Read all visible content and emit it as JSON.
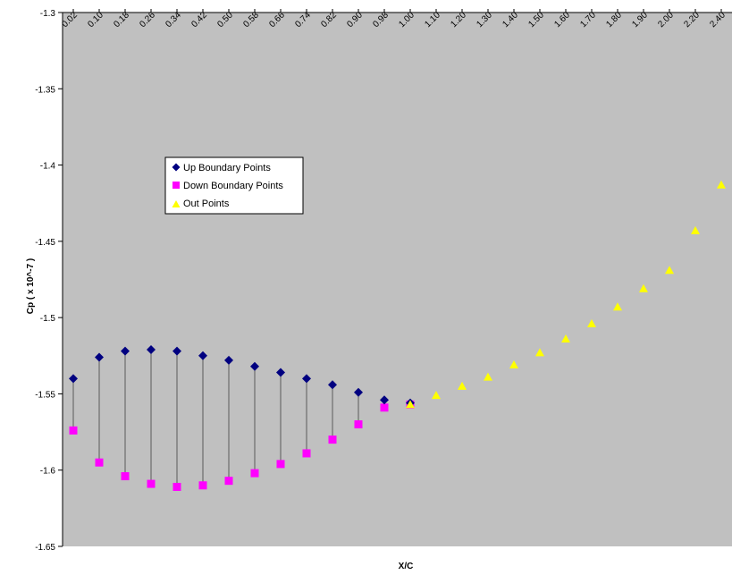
{
  "chart_data": {
    "type": "scatter",
    "xlabel": "X/C",
    "ylabel": "Cp ( x 10^-7 )",
    "ylim": [
      -1.65,
      -1.3
    ],
    "y_ticks": [
      "-1.3",
      "-1.35",
      "-1.4",
      "-1.45",
      "-1.5",
      "-1.55",
      "-1.6",
      "-1.65"
    ],
    "x_tick_labels": [
      "0.02",
      "0.10",
      "0.18",
      "0.26",
      "0.34",
      "0.42",
      "0.50",
      "0.58",
      "0.66",
      "0.74",
      "0.82",
      "0.90",
      "0.98",
      "1.00",
      "1.10",
      "1.20",
      "1.30",
      "1.40",
      "1.50",
      "1.60",
      "1.70",
      "1.80",
      "1.90",
      "2.00",
      "2.20",
      "2.40"
    ],
    "grid": false,
    "legend_position": "upper-left",
    "series": [
      {
        "name": "Up Boundary Points",
        "marker": "diamond",
        "color": "#000080",
        "x": [
          "0.02",
          "0.10",
          "0.18",
          "0.26",
          "0.34",
          "0.42",
          "0.50",
          "0.58",
          "0.66",
          "0.74",
          "0.82",
          "0.90",
          "0.98",
          "1.00"
        ],
        "values": [
          -1.54,
          -1.526,
          -1.522,
          -1.521,
          -1.522,
          -1.525,
          -1.528,
          -1.532,
          -1.536,
          -1.54,
          -1.544,
          -1.549,
          -1.554,
          -1.556
        ]
      },
      {
        "name": "Down Boundary Points",
        "marker": "square",
        "color": "#ff00ff",
        "x": [
          "0.02",
          "0.10",
          "0.18",
          "0.26",
          "0.34",
          "0.42",
          "0.50",
          "0.58",
          "0.66",
          "0.74",
          "0.82",
          "0.90",
          "0.98",
          "1.00"
        ],
        "values": [
          -1.574,
          -1.595,
          -1.604,
          -1.609,
          -1.611,
          -1.61,
          -1.607,
          -1.602,
          -1.596,
          -1.589,
          -1.58,
          -1.57,
          -1.559,
          -1.557
        ]
      },
      {
        "name": "Out Points",
        "marker": "triangle",
        "color": "#ffff00",
        "x": [
          "1.00",
          "1.10",
          "1.20",
          "1.30",
          "1.40",
          "1.50",
          "1.60",
          "1.70",
          "1.80",
          "1.90",
          "2.00",
          "2.20",
          "2.40"
        ],
        "values": [
          -1.557,
          -1.551,
          -1.545,
          -1.539,
          -1.531,
          -1.523,
          -1.514,
          -1.504,
          -1.493,
          -1.481,
          -1.469,
          -1.443,
          -1.413
        ]
      }
    ]
  }
}
